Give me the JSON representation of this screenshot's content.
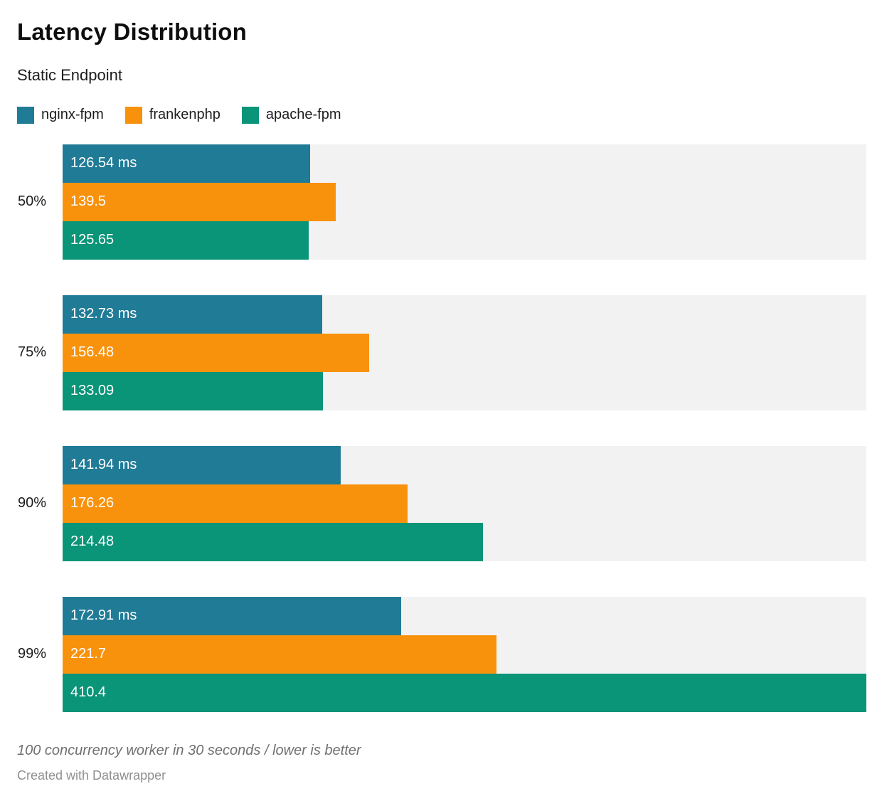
{
  "header": {
    "title": "Latency Distribution",
    "subtitle": "Static Endpoint"
  },
  "legend": [
    {
      "label": "nginx-fpm",
      "color": "#207b96"
    },
    {
      "label": "frankenphp",
      "color": "#f8920d"
    },
    {
      "label": "apache-fpm",
      "color": "#0a9478"
    }
  ],
  "chart_data": {
    "type": "bar",
    "orientation": "horizontal",
    "title": "Latency Distribution",
    "subtitle": "Static Endpoint",
    "categories": [
      "50%",
      "75%",
      "90%",
      "99%"
    ],
    "series": [
      {
        "name": "nginx-fpm",
        "color": "#207b96",
        "values": [
          126.54,
          132.73,
          141.94,
          172.91
        ],
        "labels": [
          "126.54 ms",
          "132.73 ms",
          "141.94 ms",
          "172.91 ms"
        ]
      },
      {
        "name": "frankenphp",
        "color": "#f8920d",
        "values": [
          139.5,
          156.48,
          176.26,
          221.7
        ],
        "labels": [
          "139.5",
          "156.48",
          "176.26",
          "221.7"
        ]
      },
      {
        "name": "apache-fpm",
        "color": "#0a9478",
        "values": [
          125.65,
          133.09,
          214.48,
          410.4
        ],
        "labels": [
          "125.65",
          "133.09",
          "214.48",
          "410.4"
        ]
      }
    ],
    "xlim": [
      0,
      410.4
    ],
    "value_unit": "ms",
    "grid": false,
    "legend_position": "top",
    "track_color": "#f2f2f2",
    "bar_label_color": "#ffffff"
  },
  "footer": {
    "note": "100 concurrency worker in 30 seconds / lower is better",
    "credit": "Created with Datawrapper"
  }
}
